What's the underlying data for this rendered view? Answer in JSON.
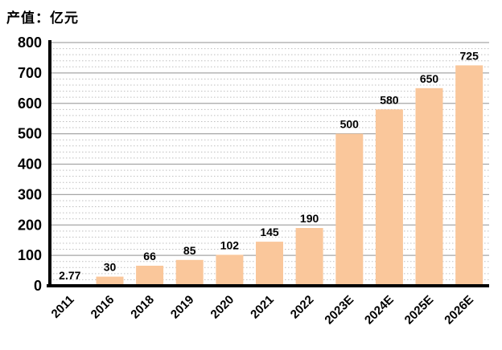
{
  "chart_data": {
    "type": "bar",
    "title": "产值：亿元",
    "categories": [
      "2011",
      "2016",
      "2018",
      "2019",
      "2020",
      "2021",
      "2022",
      "2023E",
      "2024E",
      "2025E",
      "2026E"
    ],
    "values": [
      2.77,
      30,
      66,
      85,
      102,
      145,
      190,
      500,
      580,
      650,
      725
    ],
    "value_labels": [
      "2.77",
      "30",
      "66",
      "85",
      "102",
      "145",
      "190",
      "500",
      "580",
      "650",
      "725"
    ],
    "ylabel": "",
    "xlabel": "",
    "ylim": [
      0,
      800
    ],
    "y_major_step": 100,
    "y_minor_step": 20,
    "y_tick_labels": [
      "0",
      "100",
      "200",
      "300",
      "400",
      "500",
      "600",
      "700",
      "800"
    ],
    "x_tick_rotation": -45,
    "legend": "none",
    "grid": "major-solid-minor-dotted",
    "colors": {
      "bar_fill": "#FAC79B",
      "grid_major": "#A6A6A6",
      "grid_minor": "#BFBFBF",
      "axis": "#000000",
      "text": "#000000",
      "background": "#FFFFFF"
    }
  }
}
